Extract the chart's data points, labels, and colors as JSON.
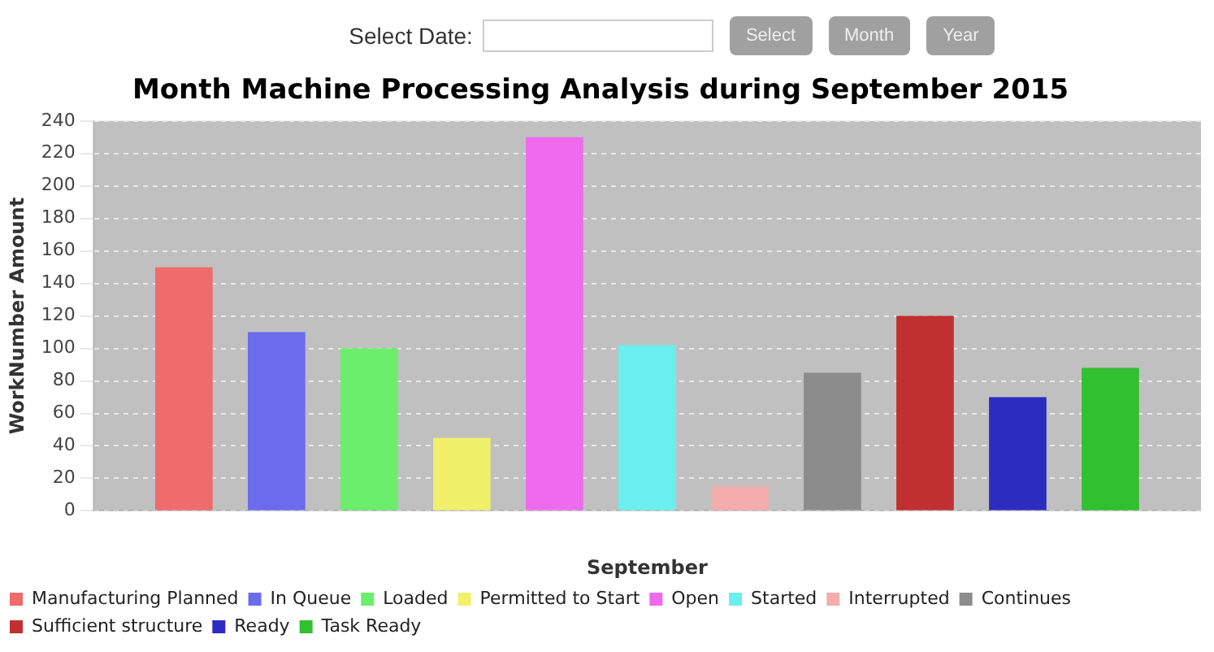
{
  "chart_data": {
    "type": "bar",
    "title": "Month Machine Processing Analysis during September 2015",
    "xlabel": "September",
    "ylabel": "WorkNumber Amount",
    "categories": [
      null
    ],
    "series": [
      {
        "name": "Manufacturing Planned",
        "color": "#f06b6b",
        "values": [
          150
        ]
      },
      {
        "name": "In Queue",
        "color": "#6b6bee",
        "values": [
          110
        ]
      },
      {
        "name": "Loaded",
        "color": "#6bee6b",
        "values": [
          100
        ]
      },
      {
        "name": "Permitted to Start",
        "color": "#f0f06b",
        "values": [
          45
        ]
      },
      {
        "name": "Open",
        "color": "#ee6bee",
        "values": [
          230
        ]
      },
      {
        "name": "Started",
        "color": "#6beeee",
        "values": [
          102
        ]
      },
      {
        "name": "Interrupted",
        "color": "#f4acac",
        "values": [
          15
        ]
      },
      {
        "name": "Continues",
        "color": "#8c8c8c",
        "values": [
          85
        ]
      },
      {
        "name": "Sufficient structure",
        "color": "#c03030",
        "values": [
          120
        ]
      },
      {
        "name": "Ready",
        "color": "#2c2cc0",
        "values": [
          70
        ]
      },
      {
        "name": "Task Ready",
        "color": "#30c030",
        "values": [
          88
        ]
      }
    ],
    "ylim": [
      0,
      240
    ],
    "yticks": [
      0,
      20,
      40,
      60,
      80,
      100,
      120,
      140,
      160,
      180,
      200,
      220,
      240
    ],
    "grid": "y",
    "legend": "bottom",
    "annotations": [
      "Select Date:",
      "Select",
      "Month",
      "Year"
    ]
  }
}
